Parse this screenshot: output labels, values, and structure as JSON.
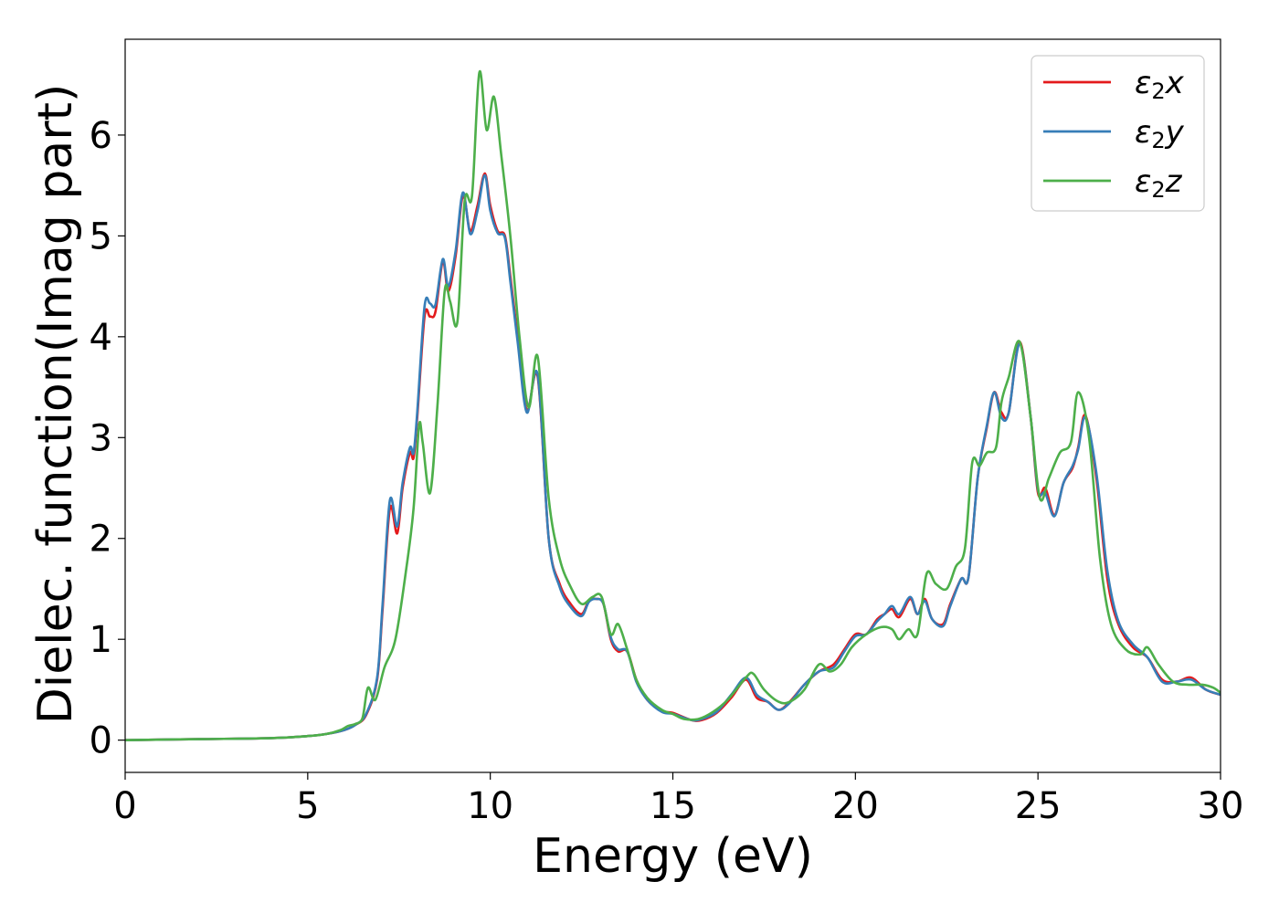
{
  "chart_data": {
    "type": "line",
    "xlabel": "Energy (eV)",
    "ylabel": "Dielec. function(Imag part)",
    "xlim": [
      0,
      30
    ],
    "ylim": [
      -0.32,
      6.95
    ],
    "xticks": [
      0,
      5,
      10,
      15,
      20,
      25,
      30
    ],
    "yticks": [
      0,
      1,
      2,
      3,
      4,
      5,
      6
    ],
    "grid": false,
    "legend_position": "top-right",
    "series": [
      {
        "name": "ε2x",
        "symbol": "ε",
        "subscript": "2",
        "axis": "x",
        "color": "#e41a1c",
        "x": [
          0,
          2,
          4,
          5,
          5.5,
          6,
          6.3,
          6.6,
          6.9,
          7.05,
          7.25,
          7.45,
          7.6,
          7.8,
          7.9,
          8.0,
          8.2,
          8.35,
          8.5,
          8.7,
          8.85,
          9.05,
          9.25,
          9.45,
          9.65,
          9.85,
          10.0,
          10.2,
          10.4,
          10.55,
          10.75,
          11.0,
          11.3,
          11.6,
          11.9,
          12.2,
          12.5,
          12.7,
          12.9,
          13.1,
          13.3,
          13.5,
          13.75,
          14.0,
          14.3,
          14.7,
          15.0,
          15.5,
          15.8,
          16.2,
          16.6,
          17.0,
          17.3,
          17.6,
          17.9,
          18.2,
          18.6,
          19.0,
          19.4,
          19.7,
          20.0,
          20.3,
          20.6,
          20.8,
          21.0,
          21.2,
          21.5,
          21.7,
          21.9,
          22.1,
          22.4,
          22.6,
          22.9,
          23.1,
          23.35,
          23.6,
          23.8,
          24.0,
          24.2,
          24.5,
          24.8,
          25.0,
          25.2,
          25.45,
          25.7,
          25.95,
          26.1,
          26.3,
          26.6,
          26.9,
          27.2,
          27.6,
          28.0,
          28.4,
          28.8,
          29.2,
          29.6,
          30.0
        ],
        "y": [
          0,
          0.01,
          0.02,
          0.04,
          0.06,
          0.1,
          0.15,
          0.25,
          0.6,
          1.3,
          2.3,
          2.05,
          2.5,
          2.85,
          2.8,
          3.2,
          4.2,
          4.2,
          4.25,
          4.75,
          4.45,
          4.8,
          5.4,
          5.05,
          5.3,
          5.62,
          5.3,
          5.05,
          5.0,
          4.6,
          4.0,
          3.27,
          3.6,
          2.0,
          1.55,
          1.35,
          1.25,
          1.38,
          1.4,
          1.35,
          1.0,
          0.88,
          0.88,
          0.6,
          0.4,
          0.29,
          0.27,
          0.2,
          0.2,
          0.27,
          0.42,
          0.6,
          0.42,
          0.38,
          0.3,
          0.38,
          0.55,
          0.68,
          0.75,
          0.9,
          1.05,
          1.05,
          1.2,
          1.25,
          1.3,
          1.22,
          1.4,
          1.25,
          1.4,
          1.2,
          1.15,
          1.35,
          1.6,
          1.62,
          2.6,
          3.1,
          3.45,
          3.25,
          3.25,
          3.95,
          3.2,
          2.45,
          2.5,
          2.23,
          2.55,
          2.7,
          2.9,
          3.22,
          2.6,
          1.6,
          1.15,
          0.92,
          0.82,
          0.6,
          0.58,
          0.62,
          0.5,
          0.45
        ]
      },
      {
        "name": "ε2y",
        "symbol": "ε",
        "subscript": "2",
        "axis": "y",
        "color": "#377eb8",
        "x": [
          0,
          2,
          4,
          5,
          5.5,
          6,
          6.3,
          6.6,
          6.9,
          7.05,
          7.25,
          7.45,
          7.6,
          7.8,
          7.9,
          8.0,
          8.2,
          8.35,
          8.5,
          8.7,
          8.85,
          9.05,
          9.25,
          9.45,
          9.65,
          9.85,
          10.0,
          10.2,
          10.4,
          10.55,
          10.75,
          11.0,
          11.3,
          11.6,
          11.9,
          12.2,
          12.5,
          12.7,
          12.9,
          13.1,
          13.3,
          13.5,
          13.75,
          14.0,
          14.3,
          14.7,
          15.0,
          15.5,
          15.8,
          16.2,
          16.6,
          17.0,
          17.3,
          17.6,
          17.9,
          18.2,
          18.6,
          19.0,
          19.4,
          19.7,
          20.0,
          20.3,
          20.6,
          20.8,
          21.0,
          21.2,
          21.5,
          21.7,
          21.9,
          22.1,
          22.4,
          22.6,
          22.9,
          23.1,
          23.35,
          23.6,
          23.8,
          24.0,
          24.2,
          24.5,
          24.8,
          25.0,
          25.2,
          25.45,
          25.7,
          25.95,
          26.1,
          26.3,
          26.6,
          26.9,
          27.2,
          27.6,
          28.0,
          28.4,
          28.8,
          29.2,
          29.6,
          30.0
        ],
        "y": [
          0,
          0.01,
          0.02,
          0.04,
          0.06,
          0.1,
          0.15,
          0.26,
          0.62,
          1.35,
          2.38,
          2.12,
          2.55,
          2.9,
          2.85,
          3.25,
          4.3,
          4.33,
          4.32,
          4.77,
          4.5,
          4.85,
          5.43,
          5.02,
          5.25,
          5.6,
          5.25,
          5.03,
          4.98,
          4.55,
          3.95,
          3.25,
          3.62,
          2.0,
          1.52,
          1.32,
          1.23,
          1.37,
          1.4,
          1.35,
          1.02,
          0.9,
          0.88,
          0.58,
          0.4,
          0.28,
          0.26,
          0.2,
          0.21,
          0.28,
          0.45,
          0.62,
          0.45,
          0.38,
          0.3,
          0.37,
          0.55,
          0.68,
          0.72,
          0.88,
          1.03,
          1.05,
          1.18,
          1.25,
          1.33,
          1.25,
          1.42,
          1.25,
          1.38,
          1.2,
          1.13,
          1.33,
          1.6,
          1.62,
          2.6,
          3.12,
          3.45,
          3.2,
          3.25,
          3.93,
          3.2,
          2.48,
          2.45,
          2.22,
          2.55,
          2.72,
          2.88,
          3.2,
          2.65,
          1.68,
          1.18,
          0.95,
          0.82,
          0.58,
          0.58,
          0.6,
          0.5,
          0.45
        ]
      },
      {
        "name": "ε2z",
        "symbol": "ε",
        "subscript": "2",
        "axis": "z",
        "color": "#4daf4a",
        "x": [
          0,
          2,
          4,
          5,
          5.5,
          5.9,
          6.1,
          6.3,
          6.5,
          6.65,
          6.85,
          7.1,
          7.4,
          7.7,
          7.9,
          8.05,
          8.15,
          8.35,
          8.55,
          8.75,
          8.9,
          9.1,
          9.3,
          9.5,
          9.7,
          9.9,
          10.1,
          10.3,
          10.55,
          10.8,
          11.05,
          11.3,
          11.6,
          11.9,
          12.2,
          12.5,
          12.8,
          13.05,
          13.3,
          13.5,
          13.75,
          14.0,
          14.3,
          14.7,
          15.0,
          15.3,
          15.7,
          16.1,
          16.5,
          17.0,
          17.2,
          17.5,
          17.9,
          18.2,
          18.6,
          19.0,
          19.3,
          19.6,
          19.9,
          20.3,
          20.7,
          21.0,
          21.2,
          21.45,
          21.7,
          21.95,
          22.2,
          22.5,
          22.75,
          23.0,
          23.2,
          23.4,
          23.6,
          23.85,
          24.0,
          24.2,
          24.5,
          24.8,
          25.05,
          25.3,
          25.6,
          25.9,
          26.1,
          26.4,
          26.7,
          27.0,
          27.4,
          27.8,
          28.0,
          28.3,
          28.7,
          29.1,
          29.5,
          29.8,
          30.0
        ],
        "y": [
          0,
          0.01,
          0.02,
          0.04,
          0.06,
          0.1,
          0.14,
          0.16,
          0.22,
          0.52,
          0.4,
          0.72,
          1.0,
          1.7,
          2.3,
          3.12,
          2.95,
          2.45,
          3.3,
          4.45,
          4.35,
          4.15,
          5.35,
          5.4,
          6.62,
          6.05,
          6.38,
          5.8,
          5.0,
          4.0,
          3.3,
          3.8,
          2.4,
          1.8,
          1.52,
          1.35,
          1.42,
          1.42,
          1.05,
          1.15,
          0.9,
          0.6,
          0.42,
          0.3,
          0.26,
          0.21,
          0.21,
          0.28,
          0.4,
          0.62,
          0.66,
          0.5,
          0.38,
          0.38,
          0.5,
          0.75,
          0.68,
          0.75,
          0.92,
          1.05,
          1.12,
          1.1,
          1.0,
          1.1,
          1.05,
          1.65,
          1.55,
          1.5,
          1.72,
          1.9,
          2.75,
          2.72,
          2.85,
          2.9,
          3.35,
          3.6,
          3.95,
          3.2,
          2.4,
          2.6,
          2.85,
          2.95,
          3.45,
          3.0,
          1.8,
          1.15,
          0.9,
          0.85,
          0.92,
          0.75,
          0.58,
          0.55,
          0.55,
          0.52,
          0.47
        ]
      }
    ]
  }
}
